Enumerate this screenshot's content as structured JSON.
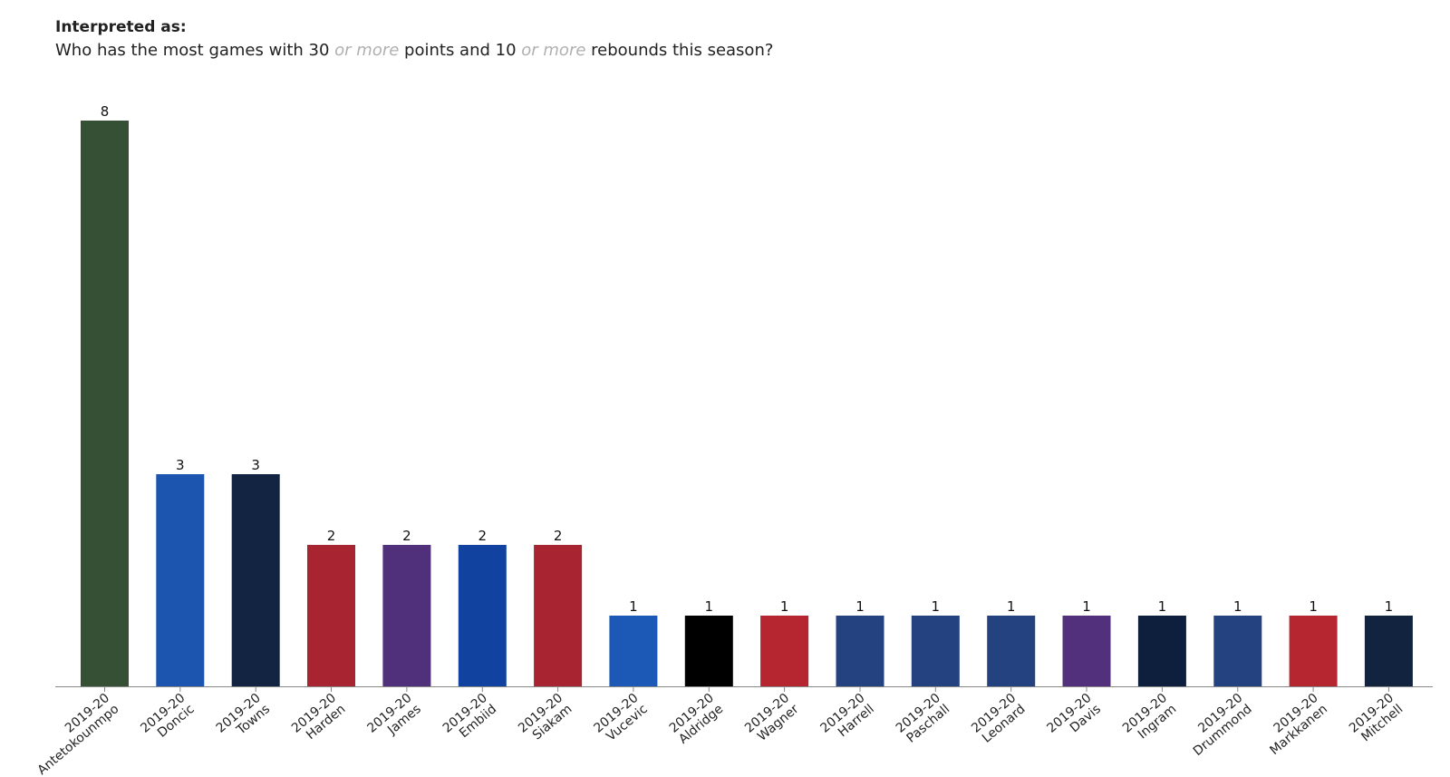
{
  "header": {
    "interpreted_label": "Interpreted as:",
    "question_parts": {
      "p1": "Who has the most games with 30 ",
      "m1": "or more",
      "p2": " points and 10 ",
      "m2": "or more",
      "p3": " rebounds this season?"
    }
  },
  "chart_data": {
    "type": "bar",
    "title": "",
    "xlabel": "",
    "ylabel": "",
    "ylim": [
      0,
      8
    ],
    "grid": false,
    "categories": [
      "2019-20 Antetokounmpo",
      "2019-20 Doncic",
      "2019-20 Towns",
      "2019-20 Harden",
      "2019-20 James",
      "2019-20 Embiid",
      "2019-20 Siakam",
      "2019-20 Vucevic",
      "2019-20 Aldridge",
      "2019-20 Wagner",
      "2019-20 Harrell",
      "2019-20 Paschall",
      "2019-20 Leonard",
      "2019-20 Davis",
      "2019-20 Ingram",
      "2019-20 Drummond",
      "2019-20 Markkanen",
      "2019-20 Mitchell"
    ],
    "tick_lines": [
      [
        "2019-20",
        "Antetokounmpo"
      ],
      [
        "2019-20",
        "Doncic"
      ],
      [
        "2019-20",
        "Towns"
      ],
      [
        "2019-20",
        "Harden"
      ],
      [
        "2019-20",
        "James"
      ],
      [
        "2019-20",
        "Embiid"
      ],
      [
        "2019-20",
        "Siakam"
      ],
      [
        "2019-20",
        "Vucevic"
      ],
      [
        "2019-20",
        "Aldridge"
      ],
      [
        "2019-20",
        "Wagner"
      ],
      [
        "2019-20",
        "Harrell"
      ],
      [
        "2019-20",
        "Paschall"
      ],
      [
        "2019-20",
        "Leonard"
      ],
      [
        "2019-20",
        "Davis"
      ],
      [
        "2019-20",
        "Ingram"
      ],
      [
        "2019-20",
        "Drummond"
      ],
      [
        "2019-20",
        "Markkanen"
      ],
      [
        "2019-20",
        "Mitchell"
      ]
    ],
    "values": [
      8,
      3,
      3,
      2,
      2,
      2,
      2,
      1,
      1,
      1,
      1,
      1,
      1,
      1,
      1,
      1,
      1,
      1
    ],
    "colors": [
      "#355035",
      "#1c55b0",
      "#132442",
      "#a82431",
      "#51307b",
      "#1142a0",
      "#a82431",
      "#1c58b5",
      "#000000",
      "#b52631",
      "#23427f",
      "#23427f",
      "#23427f",
      "#52307c",
      "#0e1f3e",
      "#23427f",
      "#b52631",
      "#122340"
    ]
  }
}
